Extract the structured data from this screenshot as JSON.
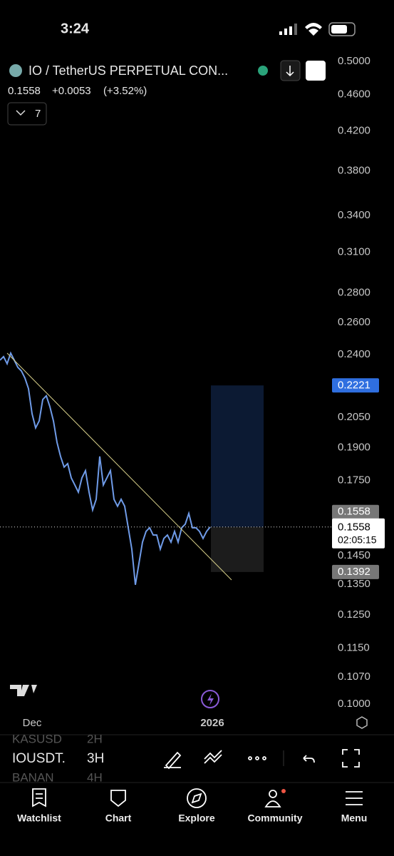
{
  "status_bar": {
    "time": "3:24"
  },
  "header": {
    "symbol": "IO / TetherUS PERPETUAL CON...",
    "price": "0.1558",
    "change": "+0.0053",
    "change_pct": "(+3.52%)",
    "indicators": "7"
  },
  "chart_data": {
    "type": "line",
    "scale": "log",
    "color": "#6f9be8",
    "values": [
      0.2366,
      0.2387,
      0.2345,
      0.2408,
      0.2366,
      0.2324,
      0.2303,
      0.2262,
      0.2203,
      0.2069,
      0.1997,
      0.2032,
      0.2144,
      0.2164,
      0.2106,
      0.2032,
      0.1926,
      0.1859,
      0.181,
      0.1826,
      0.1762,
      0.1731,
      0.17,
      0.1762,
      0.1794,
      0.17,
      0.1626,
      0.167,
      0.1859,
      0.1731,
      0.1762,
      0.1794,
      0.167,
      0.1641,
      0.167,
      0.1641,
      0.1555,
      0.1474,
      0.1348,
      0.1422,
      0.15,
      0.1541,
      0.1555,
      0.1527,
      0.1527,
      0.1474,
      0.1514,
      0.1527,
      0.15,
      0.1541,
      0.15,
      0.1555,
      0.1569,
      0.1612,
      0.1555,
      0.1555,
      0.1541,
      0.1514,
      0.1541,
      0.1558
    ],
    "ylim": [
      0.1,
      0.5
    ],
    "yticks": [
      {
        "value": 0.5,
        "label": "0.5000"
      },
      {
        "value": 0.46,
        "label": "0.4600"
      },
      {
        "value": 0.42,
        "label": "0.4200"
      },
      {
        "value": 0.38,
        "label": "0.3800"
      },
      {
        "value": 0.34,
        "label": "0.3400"
      },
      {
        "value": 0.31,
        "label": "0.3100"
      },
      {
        "value": 0.28,
        "label": "0.2800"
      },
      {
        "value": 0.26,
        "label": "0.2600"
      },
      {
        "value": 0.24,
        "label": "0.2400"
      },
      {
        "value": 0.205,
        "label": "0.2050"
      },
      {
        "value": 0.19,
        "label": "0.1900"
      },
      {
        "value": 0.175,
        "label": "0.1750"
      },
      {
        "value": 0.145,
        "label": "0.1450"
      },
      {
        "value": 0.135,
        "label": "0.1350"
      },
      {
        "value": 0.125,
        "label": "0.1250"
      },
      {
        "value": 0.115,
        "label": "0.1150"
      },
      {
        "value": 0.107,
        "label": "0.1070"
      },
      {
        "value": 0.1,
        "label": "0.1000"
      }
    ],
    "position": {
      "target": 0.2221,
      "entry": 0.1558,
      "stop": 0.1392
    },
    "last_price": 0.1558,
    "countdown": "02:05:15",
    "x_labels": [
      "Dec",
      "2026"
    ]
  },
  "toolbar": {
    "symbols": [
      [
        "KASUSD",
        "2H"
      ],
      [
        "IOUSDT.",
        "3H"
      ],
      [
        "BANAN",
        "4H"
      ]
    ]
  },
  "tabs": [
    "Watchlist",
    "Chart",
    "Explore",
    "Community",
    "Menu"
  ]
}
